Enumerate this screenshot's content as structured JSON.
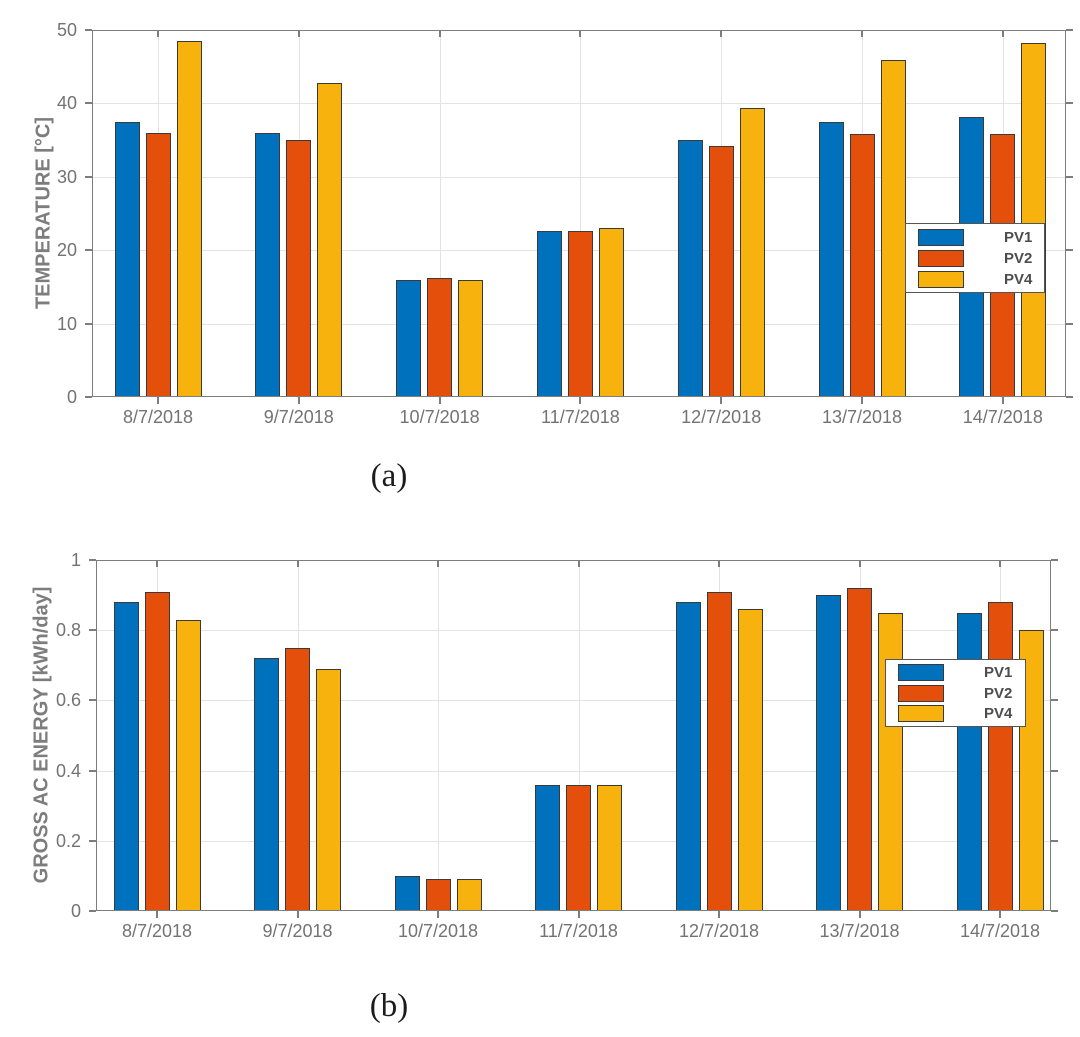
{
  "page": {
    "background": "#ffffff"
  },
  "colors": {
    "pv1": "#0072BD",
    "pv2": "#E4500B",
    "pv4": "#F7B20D",
    "bar_edge": "#3A3A3A",
    "axis_box": "#7D7D7D",
    "grid": "#E3E3E3",
    "tick_text": "#737373",
    "axis_label_text": "#7D7D7D",
    "legend_text": "#4D4D4D",
    "legend_border": "#555555",
    "caption_text": "#1C1C1C"
  },
  "chart_data": [
    {
      "type": "bar",
      "caption": "(a)",
      "title": "",
      "xlabel": "",
      "ylabel": "TEMPERATURE [°C]",
      "categories": [
        "8/7/2018",
        "9/7/2018",
        "10/7/2018",
        "11/7/2018",
        "12/7/2018",
        "13/7/2018",
        "14/7/2018"
      ],
      "series": [
        {
          "name": "PV1",
          "color": "#0072BD",
          "values": [
            37.5,
            36.0,
            16.0,
            22.6,
            35.0,
            37.4,
            38.2
          ]
        },
        {
          "name": "PV2",
          "color": "#E4500B",
          "values": [
            36.0,
            35.0,
            16.2,
            22.6,
            34.2,
            35.8,
            35.8
          ]
        },
        {
          "name": "PV4",
          "color": "#F7B20D",
          "values": [
            48.5,
            42.8,
            16.0,
            23.0,
            39.4,
            45.9,
            48.2
          ]
        }
      ],
      "ylim": [
        0,
        50
      ],
      "yticks": [
        0,
        10,
        20,
        30,
        40,
        50
      ],
      "ytick_labels": [
        "0",
        "10",
        "20",
        "30",
        "40",
        "50"
      ],
      "grid": true,
      "legend": {
        "entries": [
          "PV1",
          "PV2",
          "PV4"
        ],
        "position": "right-middle"
      }
    },
    {
      "type": "bar",
      "caption": "(b)",
      "title": "",
      "xlabel": "",
      "ylabel": "GROSS AC ENERGY [kWh/day]",
      "categories": [
        "8/7/2018",
        "9/7/2018",
        "10/7/2018",
        "11/7/2018",
        "12/7/2018",
        "13/7/2018",
        "14/7/2018"
      ],
      "series": [
        {
          "name": "PV1",
          "color": "#0072BD",
          "values": [
            0.88,
            0.72,
            0.1,
            0.36,
            0.88,
            0.9,
            0.85
          ]
        },
        {
          "name": "PV2",
          "color": "#E4500B",
          "values": [
            0.91,
            0.75,
            0.09,
            0.36,
            0.91,
            0.92,
            0.88
          ]
        },
        {
          "name": "PV4",
          "color": "#F7B20D",
          "values": [
            0.83,
            0.69,
            0.09,
            0.36,
            0.86,
            0.85,
            0.8
          ]
        }
      ],
      "ylim": [
        0,
        1
      ],
      "yticks": [
        0,
        0.2,
        0.4,
        0.6,
        0.8,
        1
      ],
      "ytick_labels": [
        "0",
        "0.2",
        "0.4",
        "0.6",
        "0.8",
        "1"
      ],
      "grid": true,
      "legend": {
        "entries": [
          "PV1",
          "PV2",
          "PV4"
        ],
        "position": "right-middle"
      }
    }
  ]
}
